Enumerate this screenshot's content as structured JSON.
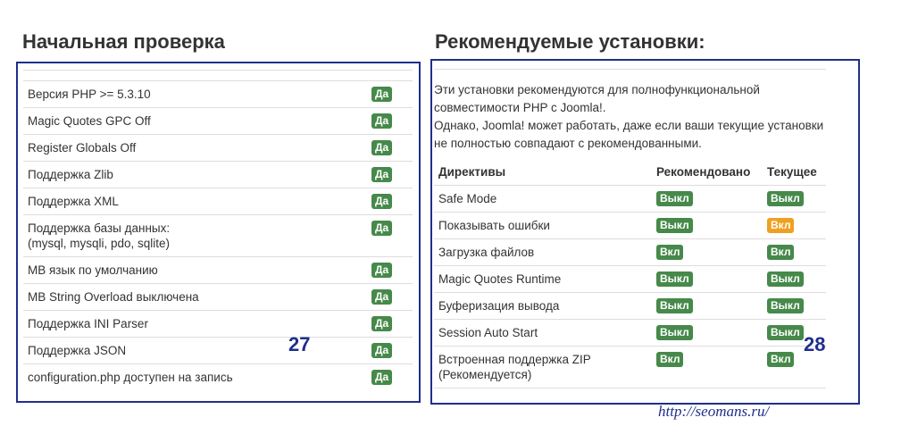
{
  "left": {
    "title": "Начальная проверка",
    "rows": [
      {
        "label": "Версия PHP >= 5.3.10",
        "status": "Да"
      },
      {
        "label": "Magic Quotes GPC Off",
        "status": "Да"
      },
      {
        "label": "Register Globals Off",
        "status": "Да"
      },
      {
        "label": "Поддержка Zlib",
        "status": "Да"
      },
      {
        "label": "Поддержка XML",
        "status": "Да"
      },
      {
        "label": "Поддержка базы данных:",
        "detail": "(mysql, mysqli, pdo, sqlite)",
        "status": "Да"
      },
      {
        "label": "MB язык по умолчанию",
        "status": "Да"
      },
      {
        "label": "MB String Overload выключена",
        "status": "Да"
      },
      {
        "label": "Поддержка INI Parser",
        "status": "Да"
      },
      {
        "label": "Поддержка JSON",
        "status": "Да"
      },
      {
        "label": "configuration.php доступен на запись",
        "status": "Да"
      }
    ]
  },
  "right": {
    "title": "Рекомендуемые установки:",
    "description": [
      "Эти установки рекомендуются для полнофункциональной совместимости PHP с Joomla!.",
      "Однако, Joomla! может работать, даже если ваши текущие установки не полностью совпадают с рекомендованными."
    ],
    "headers": [
      "Директивы",
      "Рекомендовано",
      "Текущее"
    ],
    "rows": [
      {
        "directive": "Safe Mode",
        "recommended": "Выкл",
        "current": "Выкл"
      },
      {
        "directive": "Показывать ошибки",
        "recommended": "Выкл",
        "current": "Вкл"
      },
      {
        "directive": "Загрузка файлов",
        "recommended": "Вкл",
        "current": "Вкл"
      },
      {
        "directive": "Magic Quotes Runtime",
        "recommended": "Выкл",
        "current": "Выкл"
      },
      {
        "directive": "Буферизация вывода",
        "recommended": "Выкл",
        "current": "Выкл"
      },
      {
        "directive": "Session Auto Start",
        "recommended": "Выкл",
        "current": "Выкл"
      },
      {
        "directive": "Встроенная поддержка ZIP",
        "detail": "(Рекомендуется)",
        "recommended": "Вкл",
        "current": "Вкл"
      }
    ]
  },
  "annotations": {
    "left_number": "27",
    "right_number": "28",
    "watermark": "http://seomans.ru/"
  }
}
